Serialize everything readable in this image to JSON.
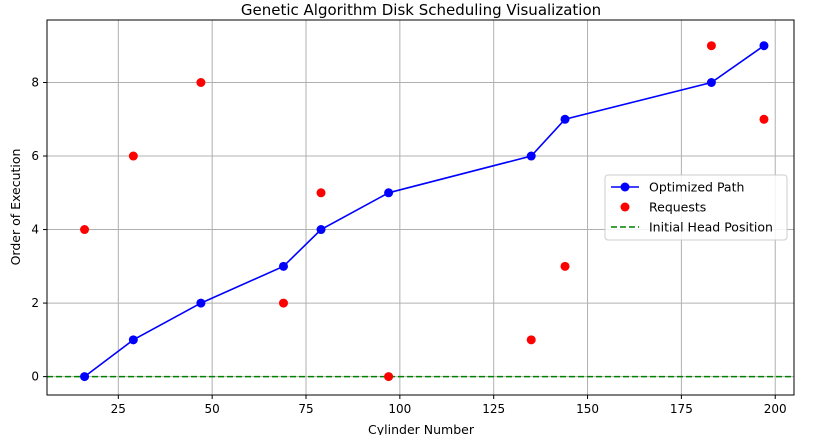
{
  "chart_data": {
    "type": "line",
    "title": "Genetic Algorithm Disk Scheduling Visualization",
    "xlabel": "Cylinder Number",
    "ylabel": "Order of Execution",
    "xlim": [
      6,
      205
    ],
    "ylim": [
      -0.5,
      9.7
    ],
    "xticks": [
      25,
      50,
      75,
      100,
      125,
      150,
      175,
      200
    ],
    "yticks": [
      0,
      2,
      4,
      6,
      8
    ],
    "grid": true,
    "legend_position": "center-right",
    "series": [
      {
        "name": "Optimized Path",
        "kind": "line-marker",
        "color": "#0000ff",
        "x": [
          16,
          29,
          47,
          69,
          79,
          97,
          135,
          144,
          183,
          197
        ],
        "y": [
          0,
          1,
          2,
          3,
          4,
          5,
          6,
          7,
          8,
          9
        ]
      },
      {
        "name": "Requests",
        "kind": "scatter",
        "color": "#ff0000",
        "x": [
          16,
          29,
          47,
          69,
          79,
          97,
          135,
          144,
          183,
          197
        ],
        "y": [
          4,
          6,
          8,
          2,
          5,
          0,
          1,
          3,
          9,
          7
        ]
      },
      {
        "name": "Initial Head Position",
        "kind": "hline",
        "color": "#008000",
        "y": 0
      }
    ]
  }
}
